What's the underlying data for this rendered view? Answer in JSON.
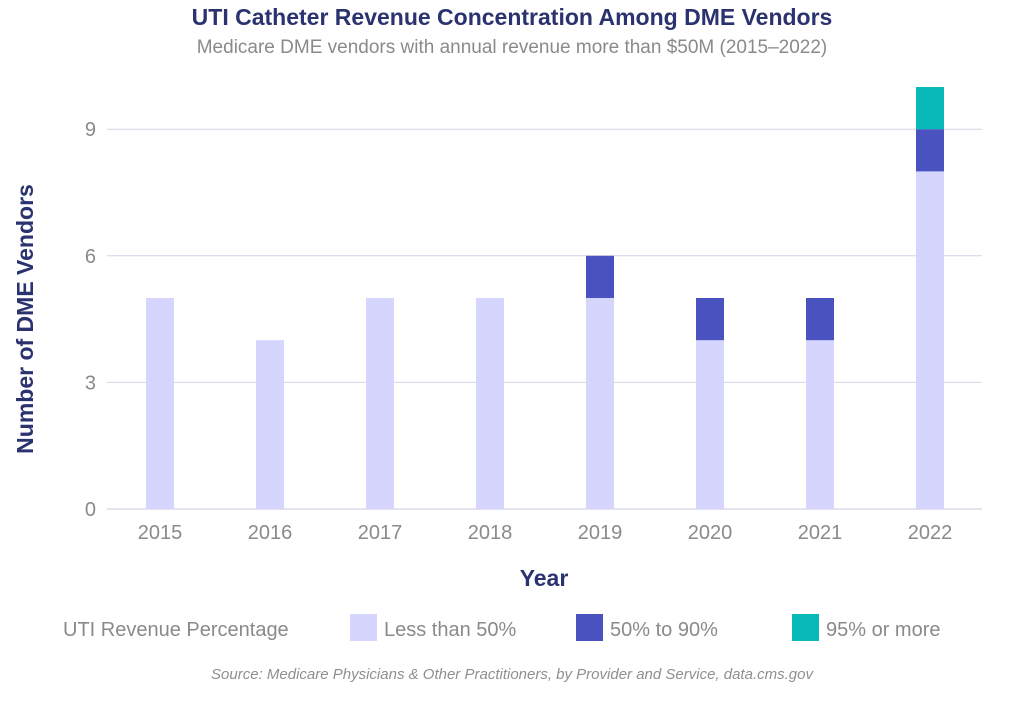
{
  "chart_data": {
    "type": "bar",
    "stacked": true,
    "title": "UTI Catheter Revenue Concentration Among DME Vendors",
    "subtitle": "Medicare DME vendors with annual revenue more than $50M (2015–2022)",
    "xlabel": "Year",
    "ylabel": "Number of DME Vendors",
    "categories": [
      "2015",
      "2016",
      "2017",
      "2018",
      "2019",
      "2020",
      "2021",
      "2022"
    ],
    "yticks": [
      0,
      3,
      6,
      9
    ],
    "ylim": [
      0,
      10
    ],
    "grid": true,
    "legend": {
      "title": "UTI Revenue Percentage",
      "placement": "bottom"
    },
    "series": [
      {
        "name": "Less than 50%",
        "color": "#d6d5fd",
        "values": [
          5,
          4,
          5,
          5,
          5,
          4,
          4,
          8
        ]
      },
      {
        "name": "50% to 90%",
        "color": "#4a52c0",
        "values": [
          0,
          0,
          0,
          0,
          1,
          1,
          1,
          1
        ]
      },
      {
        "name": "95% or more",
        "color": "#08b9b9",
        "values": [
          0,
          0,
          0,
          0,
          0,
          0,
          0,
          1
        ]
      }
    ],
    "source": "Source: Medicare Physicians & Other Practitioners, by Provider and Service, data.cms.gov"
  }
}
